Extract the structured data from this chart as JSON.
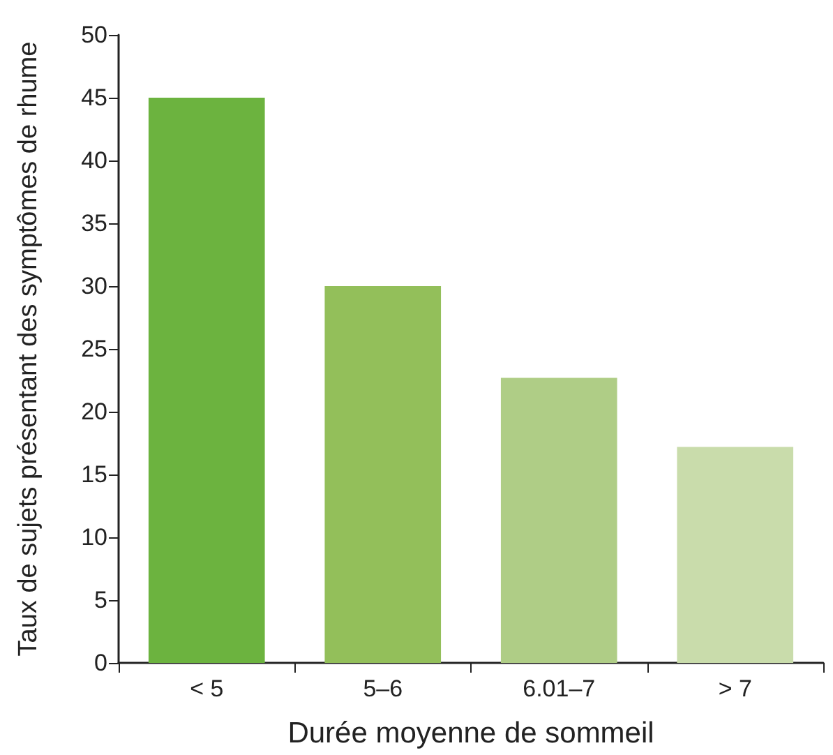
{
  "chart_data": {
    "type": "bar",
    "xlabel": "Durée moyenne de sommeil",
    "ylabel": "Taux de sujets présentant des symptômes de rhume",
    "categories": [
      "< 5",
      "5–6",
      "6.01–7",
      "> 7"
    ],
    "values": [
      45,
      30,
      22.7,
      17.2
    ],
    "colors": [
      "#6cb33f",
      "#93bf5a",
      "#afcd86",
      "#c9dcab"
    ],
    "ylim": [
      0,
      50
    ],
    "yticks": [
      0,
      5,
      10,
      15,
      20,
      25,
      30,
      35,
      40,
      45,
      50
    ],
    "grid": false
  }
}
